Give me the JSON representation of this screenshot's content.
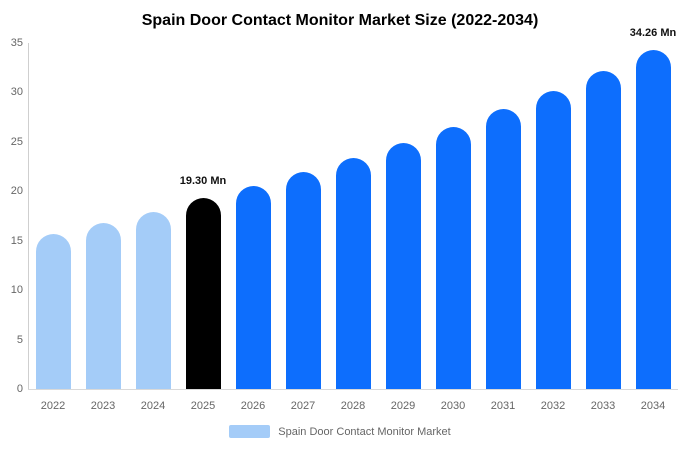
{
  "title": "Spain Door Contact Monitor Market Size (2022-2034)",
  "colors": {
    "primary": "#0d6efd",
    "history": "#a4ccf8",
    "highlight": "#000000",
    "axis": "#cfcfcf",
    "tick_text": "#666666",
    "annotation_text": "#111111"
  },
  "legend": {
    "label": "Spain Door Contact Monitor Market",
    "swatch_color": "#a4ccf8"
  },
  "chart_data": {
    "type": "bar",
    "title": "Spain Door Contact Monitor Market Size (2022-2034)",
    "xlabel": "",
    "ylabel": "",
    "unit": "Mn",
    "ylim": [
      0,
      35
    ],
    "ytick_step": 5,
    "yticks": [
      0,
      5,
      10,
      15,
      20,
      25,
      30,
      35
    ],
    "grid": false,
    "legend_position": "bottom",
    "categories": [
      "2022",
      "2023",
      "2024",
      "2025",
      "2026",
      "2027",
      "2028",
      "2029",
      "2030",
      "2031",
      "2032",
      "2033",
      "2034"
    ],
    "values": [
      15.7,
      16.8,
      17.9,
      19.3,
      20.57,
      21.92,
      23.36,
      24.9,
      26.54,
      28.28,
      30.14,
      32.12,
      34.26
    ],
    "bar_color_roles": [
      "history",
      "history",
      "history",
      "highlight",
      "primary",
      "primary",
      "primary",
      "primary",
      "primary",
      "primary",
      "primary",
      "primary",
      "primary"
    ],
    "annotations": [
      {
        "index": 3,
        "text": "19.30 Mn"
      },
      {
        "index": 12,
        "text": "34.26 Mn"
      }
    ]
  }
}
